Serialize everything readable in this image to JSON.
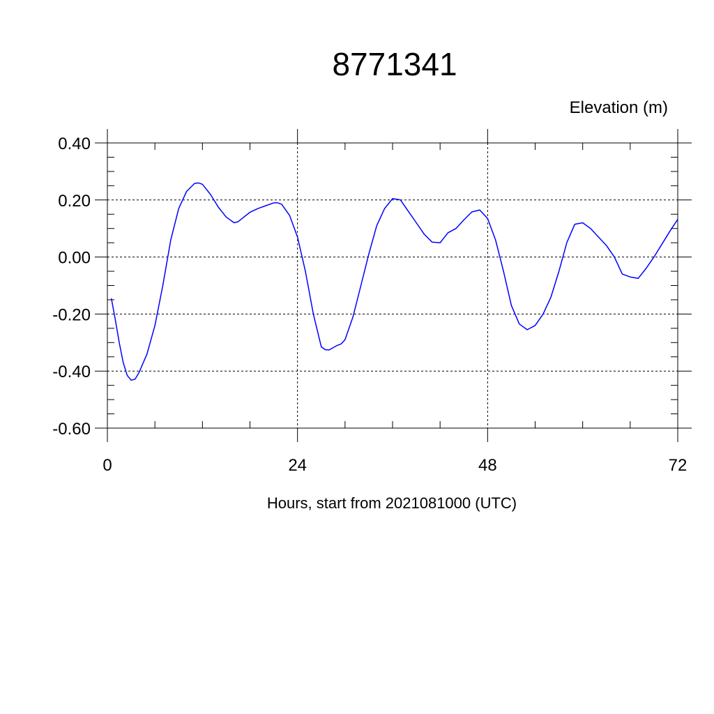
{
  "chart_data": {
    "type": "line",
    "title": "8771341",
    "units_label": "Elevation (m)",
    "xlabel": "Hours, start from 2021081000 (UTC)",
    "ylabel": "",
    "xlim": [
      0,
      72
    ],
    "ylim": [
      -0.6,
      0.4
    ],
    "x_ticks": [
      0,
      24,
      48,
      72
    ],
    "x_tick_labels": [
      "0",
      "24",
      "48",
      "72"
    ],
    "y_ticks": [
      0.4,
      0.2,
      0.0,
      -0.2,
      -0.4,
      -0.6
    ],
    "y_tick_labels": [
      "0.40",
      "0.20",
      "0.00",
      "-0.20",
      "-0.40",
      "-0.60"
    ],
    "grid": true,
    "line_color": "#0000ff",
    "series": [
      {
        "x": [
          0.5,
          1,
          1.5,
          2,
          2.5,
          3,
          3.5,
          4,
          5,
          6,
          7,
          8,
          9,
          10,
          11,
          11.5,
          12,
          13,
          14,
          15,
          16,
          16.5,
          17,
          18,
          19,
          20,
          21,
          21.5,
          22,
          23,
          24,
          25,
          26,
          27,
          27.5,
          28,
          29,
          29.5,
          30,
          31,
          32,
          33,
          34,
          35,
          36,
          37,
          38,
          39,
          40,
          41,
          42,
          43,
          44,
          45,
          46,
          47,
          48,
          49,
          50,
          51,
          52,
          53,
          54,
          55,
          56,
          57,
          58,
          59,
          60,
          61,
          62,
          63,
          64,
          65,
          66,
          67,
          68,
          69,
          70,
          71,
          72
        ],
        "y": [
          -0.145,
          -0.22,
          -0.3,
          -0.37,
          -0.415,
          -0.432,
          -0.428,
          -0.405,
          -0.34,
          -0.24,
          -0.1,
          0.06,
          0.17,
          0.23,
          0.258,
          0.26,
          0.255,
          0.22,
          0.175,
          0.14,
          0.12,
          0.124,
          0.135,
          0.157,
          0.17,
          0.18,
          0.19,
          0.19,
          0.185,
          0.146,
          0.07,
          -0.05,
          -0.2,
          -0.315,
          -0.325,
          -0.326,
          -0.31,
          -0.305,
          -0.29,
          -0.21,
          -0.1,
          0.01,
          0.11,
          0.17,
          0.205,
          0.2,
          0.16,
          0.12,
          0.08,
          0.052,
          0.05,
          0.085,
          0.1,
          0.13,
          0.158,
          0.165,
          0.135,
          0.06,
          -0.05,
          -0.17,
          -0.235,
          -0.255,
          -0.24,
          -0.2,
          -0.14,
          -0.05,
          0.05,
          0.115,
          0.12,
          0.1,
          0.07,
          0.04,
          0.0,
          -0.06,
          -0.07,
          -0.075,
          -0.04,
          0.0,
          0.045,
          0.09,
          0.132
        ]
      }
    ]
  }
}
